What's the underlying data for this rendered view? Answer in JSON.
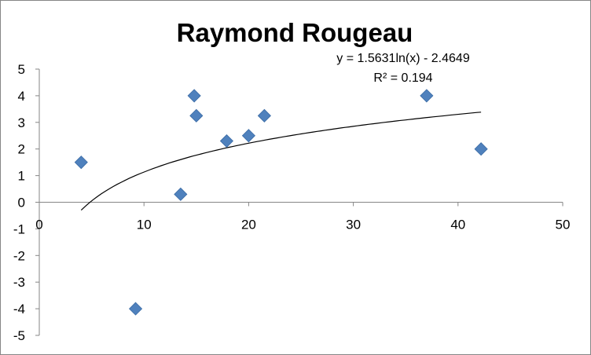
{
  "chart_data": {
    "type": "scatter",
    "title": "Raymond Rougeau",
    "xlabel": "",
    "ylabel": "",
    "xlim": [
      0,
      50
    ],
    "ylim": [
      -5,
      5
    ],
    "x_ticks": [
      0,
      10,
      20,
      30,
      40,
      50
    ],
    "y_ticks": [
      5,
      4,
      3,
      2,
      1,
      0,
      -1,
      -2,
      -3,
      -4,
      -5
    ],
    "grid": false,
    "legend": "none",
    "marker": "diamond",
    "marker_color": "#4F81BD",
    "points": [
      {
        "x": 4,
        "y": 1.5
      },
      {
        "x": 9.2,
        "y": -4
      },
      {
        "x": 13.5,
        "y": 0.3
      },
      {
        "x": 14.8,
        "y": 4
      },
      {
        "x": 15,
        "y": 3.25
      },
      {
        "x": 17.9,
        "y": 2.3
      },
      {
        "x": 20,
        "y": 2.5
      },
      {
        "x": 21.5,
        "y": 3.25
      },
      {
        "x": 37,
        "y": 4
      },
      {
        "x": 42.2,
        "y": 2
      }
    ],
    "trendline": {
      "type": "logarithmic",
      "a": 1.5631,
      "b": -2.4649,
      "x_range": [
        4,
        42.2
      ],
      "equation": "y = 1.5631ln(x) - 2.4649",
      "r_squared": "R² = 0.194",
      "color": "#000000"
    }
  }
}
